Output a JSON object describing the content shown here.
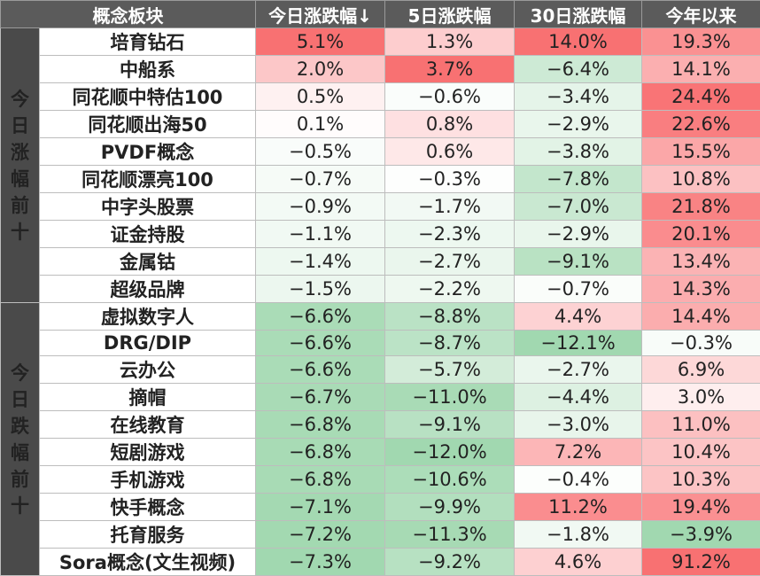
{
  "chart_data": {
    "type": "table",
    "columns": [
      "概念板块",
      "今日涨跌幅↓",
      "5日涨跌幅",
      "30日涨跌幅",
      "今年以来"
    ],
    "groups": [
      {
        "label": "今日涨幅前十",
        "kind": "top",
        "rows": [
          {
            "name": "培育钻石",
            "values": [
              "5.1%",
              "1.3%",
              "14.0%",
              "19.3%"
            ]
          },
          {
            "name": "中船系",
            "values": [
              "2.0%",
              "3.7%",
              "−6.4%",
              "14.1%"
            ]
          },
          {
            "name": "同花顺中特估100",
            "values": [
              "0.5%",
              "−0.6%",
              "−3.4%",
              "24.4%"
            ]
          },
          {
            "name": "同花顺出海50",
            "values": [
              "0.1%",
              "0.8%",
              "−2.9%",
              "22.6%"
            ]
          },
          {
            "name": "PVDF概念",
            "values": [
              "−0.5%",
              "0.6%",
              "−3.8%",
              "15.5%"
            ]
          },
          {
            "name": "同花顺漂亮100",
            "values": [
              "−0.7%",
              "−0.3%",
              "−7.8%",
              "10.8%"
            ]
          },
          {
            "name": "中字头股票",
            "values": [
              "−0.9%",
              "−1.7%",
              "−7.0%",
              "21.8%"
            ]
          },
          {
            "name": "证金持股",
            "values": [
              "−1.1%",
              "−2.3%",
              "−2.9%",
              "20.1%"
            ]
          },
          {
            "name": "金属钴",
            "values": [
              "−1.4%",
              "−2.7%",
              "−9.1%",
              "13.4%"
            ]
          },
          {
            "name": "超级品牌",
            "values": [
              "−1.5%",
              "−2.2%",
              "−0.7%",
              "14.3%"
            ]
          }
        ]
      },
      {
        "label": "今日跌幅前十",
        "kind": "bottom",
        "rows": [
          {
            "name": "虚拟数字人",
            "values": [
              "−6.6%",
              "−8.8%",
              "4.4%",
              "14.4%"
            ]
          },
          {
            "name": "DRG/DIP",
            "values": [
              "−6.6%",
              "−8.7%",
              "−12.1%",
              "−0.3%"
            ]
          },
          {
            "name": "云办公",
            "values": [
              "−6.6%",
              "−5.7%",
              "−2.7%",
              "6.9%"
            ]
          },
          {
            "name": "摘帽",
            "values": [
              "−6.7%",
              "−11.0%",
              "−4.4%",
              "3.0%"
            ]
          },
          {
            "name": "在线教育",
            "values": [
              "−6.8%",
              "−9.1%",
              "−3.0%",
              "11.0%"
            ]
          },
          {
            "name": "短剧游戏",
            "values": [
              "−6.8%",
              "−12.0%",
              "7.2%",
              "10.4%"
            ]
          },
          {
            "name": "手机游戏",
            "values": [
              "−6.8%",
              "−10.6%",
              "−0.4%",
              "10.3%"
            ]
          },
          {
            "name": "快手概念",
            "values": [
              "−7.1%",
              "−9.9%",
              "11.2%",
              "19.4%"
            ]
          },
          {
            "name": "托育服务",
            "values": [
              "−7.2%",
              "−11.3%",
              "−1.8%",
              "−3.9%"
            ]
          },
          {
            "name": "Sora概念(文生视频)",
            "values": [
              "−7.3%",
              "−9.2%",
              "4.6%",
              "91.2%"
            ]
          }
        ]
      }
    ],
    "colors": {
      "header_bg": "#5b5b5b",
      "group_bg": "#4a4a4a",
      "top_name": "#c00000",
      "bottom_name": "#375623",
      "positive_scale": "#f8696b",
      "negative_scale": "#63be7b"
    }
  }
}
